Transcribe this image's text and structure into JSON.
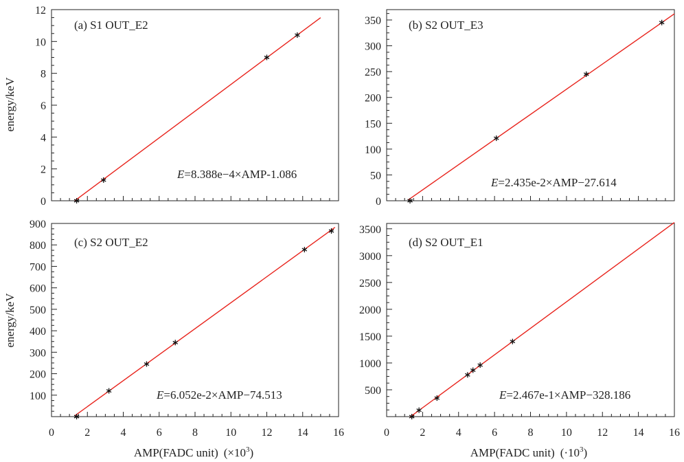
{
  "figure": {
    "y_axis_label": "energy/keV",
    "x_axis_label_main": "AMP(FADC unit)",
    "x_axis_label_scale_left": "(×10",
    "x_axis_label_scale_right": "(·10",
    "x_axis_label_exp": "3",
    "x_axis_label_close": ")"
  },
  "chart_data": [
    {
      "id": "a",
      "type": "scatter",
      "title": "(a)  S1 OUT_E2",
      "xlim": [
        0,
        16
      ],
      "ylim": [
        0,
        12
      ],
      "xticks": [
        0,
        2,
        4,
        6,
        8,
        10,
        12,
        14,
        16
      ],
      "yticks": [
        0,
        2,
        4,
        6,
        8,
        10,
        12
      ],
      "series": [
        {
          "values": [
            {
              "x": 1.4,
              "y": 0.0
            },
            {
              "x": 2.9,
              "y": 1.3
            },
            {
              "x": 12.0,
              "y": 9.0
            },
            {
              "x": 13.7,
              "y": 10.4
            }
          ]
        }
      ],
      "fit": {
        "color": "#e8231c",
        "x_range": [
          1.3,
          15.0
        ],
        "slope": 0.8388,
        "intercept": -1.086
      },
      "equation": {
        "var": "E",
        "text": "=8.388e−4×AMP-1.086"
      },
      "point_color": "#111111"
    },
    {
      "id": "b",
      "type": "scatter",
      "title": "(b)  S2 OUT_E3",
      "xlim": [
        0,
        16
      ],
      "ylim": [
        0,
        370
      ],
      "xticks": [
        0,
        2,
        4,
        6,
        8,
        10,
        12,
        14,
        16
      ],
      "yticks": [
        0,
        50,
        100,
        150,
        200,
        250,
        300,
        350
      ],
      "series": [
        {
          "values": [
            {
              "x": 1.3,
              "y": 0.0
            },
            {
              "x": 6.1,
              "y": 121
            },
            {
              "x": 11.1,
              "y": 245
            },
            {
              "x": 15.3,
              "y": 345
            }
          ]
        }
      ],
      "fit": {
        "color": "#e8231c",
        "x_range": [
          1.2,
          16.0
        ],
        "slope": 24.35,
        "intercept": -27.614
      },
      "equation": {
        "var": "E",
        "text": "=2.435e-2×AMP−27.614"
      },
      "point_color": "#111111"
    },
    {
      "id": "c",
      "type": "scatter",
      "title": "(c)  S2 OUT_E2",
      "xlim": [
        0,
        16
      ],
      "ylim": [
        0,
        900
      ],
      "xticks": [
        0,
        2,
        4,
        6,
        8,
        10,
        12,
        14,
        16
      ],
      "xtick_labels_shown": [
        0,
        2,
        4,
        6,
        8,
        10,
        12,
        14,
        16
      ],
      "yticks": [
        100,
        200,
        300,
        400,
        500,
        600,
        700,
        800,
        900
      ],
      "series": [
        {
          "values": [
            {
              "x": 1.4,
              "y": 0
            },
            {
              "x": 3.2,
              "y": 120
            },
            {
              "x": 5.3,
              "y": 245
            },
            {
              "x": 6.9,
              "y": 345
            },
            {
              "x": 14.1,
              "y": 778
            },
            {
              "x": 15.6,
              "y": 865
            }
          ]
        }
      ],
      "fit": {
        "color": "#e8231c",
        "x_range": [
          1.3,
          15.8
        ],
        "slope": 60.52,
        "intercept": -74.513
      },
      "equation": {
        "var": "E",
        "text": "=6.052e-2×AMP−74.513"
      },
      "point_color": "#111111"
    },
    {
      "id": "d",
      "type": "scatter",
      "title": "(d)  S2 OUT_E1",
      "xlim": [
        0,
        16
      ],
      "ylim": [
        0,
        3600
      ],
      "xticks": [
        0,
        2,
        4,
        6,
        8,
        10,
        12,
        14,
        16
      ],
      "yticks": [
        500,
        1000,
        1500,
        2000,
        2500,
        3000,
        3500
      ],
      "series": [
        {
          "values": [
            {
              "x": 1.4,
              "y": 0
            },
            {
              "x": 1.8,
              "y": 120
            },
            {
              "x": 2.8,
              "y": 345
            },
            {
              "x": 4.5,
              "y": 778
            },
            {
              "x": 4.8,
              "y": 865
            },
            {
              "x": 5.2,
              "y": 960
            },
            {
              "x": 7.0,
              "y": 1400
            }
          ]
        }
      ],
      "fit": {
        "color": "#e8231c",
        "x_range": [
          1.3,
          16.0
        ],
        "slope": 246.7,
        "intercept": -328.186
      },
      "equation": {
        "var": "E",
        "text": "=2.467e-1×AMP−328.186"
      },
      "point_color": "#111111"
    }
  ]
}
